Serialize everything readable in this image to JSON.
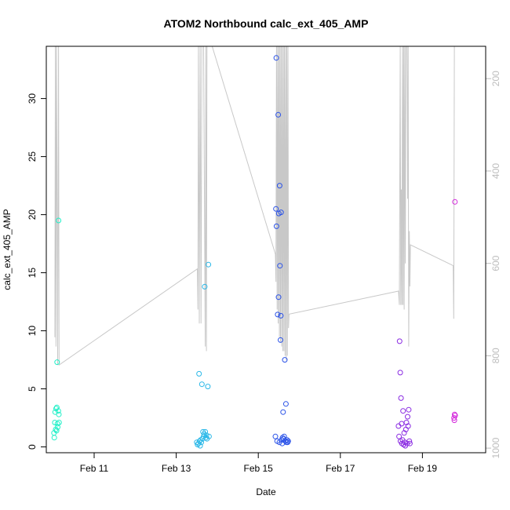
{
  "chart_data": {
    "type": "scatter",
    "title": "ATOM2 Northbound calc_ext_405_AMP",
    "xlabel": "Date",
    "ylabel": "calc_ext_405_AMP",
    "xlim": [
      "2025-02-09T20:00",
      "2025-02-20T13:00"
    ],
    "ylim": [
      -0.5,
      34.5
    ],
    "x_ticks": [
      {
        "value": "2025-02-11",
        "label": "Feb 11"
      },
      {
        "value": "2025-02-13",
        "label": "Feb 13"
      },
      {
        "value": "2025-02-15",
        "label": "Feb 15"
      },
      {
        "value": "2025-02-17",
        "label": "Feb 17"
      },
      {
        "value": "2025-02-19",
        "label": "Feb 19"
      }
    ],
    "y_ticks": [
      0,
      5,
      10,
      15,
      20,
      25,
      30
    ],
    "secondary_axis": {
      "side": "right",
      "reversed": true,
      "ylim": [
        1010,
        130
      ],
      "ticks": [
        200,
        400,
        600,
        800,
        1000
      ],
      "color": "#bdbdbd"
    },
    "grid": false,
    "legend": "none",
    "scatter_series": [
      {
        "color": "#22f0c8",
        "points": [
          {
            "x": "2025-02-10T00:30",
            "y": 1.2
          },
          {
            "x": "2025-02-10T00:40",
            "y": 0.8
          },
          {
            "x": "2025-02-10T01:00",
            "y": 2.1
          },
          {
            "x": "2025-02-10T01:10",
            "y": 3.0
          },
          {
            "x": "2025-02-10T01:30",
            "y": 1.5
          },
          {
            "x": "2025-02-10T01:45",
            "y": 3.3
          },
          {
            "x": "2025-02-10T02:00",
            "y": 1.4
          },
          {
            "x": "2025-02-10T02:10",
            "y": 3.4
          },
          {
            "x": "2025-02-10T02:20",
            "y": 7.3
          },
          {
            "x": "2025-02-10T02:30",
            "y": 2.0
          },
          {
            "x": "2025-02-10T02:40",
            "y": 1.7
          },
          {
            "x": "2025-02-10T03:00",
            "y": 3.1
          },
          {
            "x": "2025-02-10T03:10",
            "y": 19.5
          },
          {
            "x": "2025-02-10T03:20",
            "y": 2.8
          },
          {
            "x": "2025-02-10T03:30",
            "y": 2.1
          }
        ]
      },
      {
        "color": "#2ab8e8",
        "points": [
          {
            "x": "2025-02-13T12:00",
            "y": 0.4
          },
          {
            "x": "2025-02-13T12:30",
            "y": 0.2
          },
          {
            "x": "2025-02-13T13:00",
            "y": 0.3
          },
          {
            "x": "2025-02-13T13:20",
            "y": 6.3
          },
          {
            "x": "2025-02-13T13:40",
            "y": 0.5
          },
          {
            "x": "2025-02-13T14:00",
            "y": 0.1
          },
          {
            "x": "2025-02-13T14:20",
            "y": 0.6
          },
          {
            "x": "2025-02-13T14:40",
            "y": 0.4
          },
          {
            "x": "2025-02-13T15:00",
            "y": 5.4
          },
          {
            "x": "2025-02-13T15:20",
            "y": 0.7
          },
          {
            "x": "2025-02-13T15:40",
            "y": 1.3
          },
          {
            "x": "2025-02-13T16:00",
            "y": 0.9
          },
          {
            "x": "2025-02-13T16:20",
            "y": 1.1
          },
          {
            "x": "2025-02-13T16:40",
            "y": 13.8
          },
          {
            "x": "2025-02-13T17:00",
            "y": 1.3
          },
          {
            "x": "2025-02-13T17:20",
            "y": 0.8
          },
          {
            "x": "2025-02-13T17:40",
            "y": 1.0
          },
          {
            "x": "2025-02-13T18:00",
            "y": 0.7
          },
          {
            "x": "2025-02-13T18:30",
            "y": 5.2
          },
          {
            "x": "2025-02-13T18:50",
            "y": 15.7
          },
          {
            "x": "2025-02-13T19:10",
            "y": 0.9
          }
        ]
      },
      {
        "color": "#2a52e8",
        "points": [
          {
            "x": "2025-02-15T10:00",
            "y": 0.9
          },
          {
            "x": "2025-02-15T10:20",
            "y": 20.5
          },
          {
            "x": "2025-02-15T10:30",
            "y": 33.5
          },
          {
            "x": "2025-02-15T10:40",
            "y": 19.0
          },
          {
            "x": "2025-02-15T11:00",
            "y": 0.5
          },
          {
            "x": "2025-02-15T11:20",
            "y": 11.4
          },
          {
            "x": "2025-02-15T11:40",
            "y": 28.6
          },
          {
            "x": "2025-02-15T11:50",
            "y": 12.9
          },
          {
            "x": "2025-02-15T12:00",
            "y": 20.1
          },
          {
            "x": "2025-02-15T12:20",
            "y": 0.4
          },
          {
            "x": "2025-02-15T12:30",
            "y": 22.5
          },
          {
            "x": "2025-02-15T12:40",
            "y": 15.6
          },
          {
            "x": "2025-02-15T13:00",
            "y": 9.2
          },
          {
            "x": "2025-02-15T13:10",
            "y": 11.3
          },
          {
            "x": "2025-02-15T13:20",
            "y": 20.2
          },
          {
            "x": "2025-02-15T13:40",
            "y": 0.6
          },
          {
            "x": "2025-02-15T14:00",
            "y": 0.3
          },
          {
            "x": "2025-02-15T14:10",
            "y": 0.8
          },
          {
            "x": "2025-02-15T14:30",
            "y": 3.0
          },
          {
            "x": "2025-02-15T14:50",
            "y": 0.7
          },
          {
            "x": "2025-02-15T15:10",
            "y": 0.9
          },
          {
            "x": "2025-02-15T15:30",
            "y": 7.5
          },
          {
            "x": "2025-02-15T15:50",
            "y": 0.5
          },
          {
            "x": "2025-02-15T16:10",
            "y": 3.7
          },
          {
            "x": "2025-02-15T16:30",
            "y": 0.4
          },
          {
            "x": "2025-02-15T16:50",
            "y": 0.6
          },
          {
            "x": "2025-02-15T17:10",
            "y": 0.4
          },
          {
            "x": "2025-02-15T17:30",
            "y": 0.5
          }
        ]
      },
      {
        "color": "#8a2be2",
        "points": [
          {
            "x": "2025-02-18T10:00",
            "y": 1.8
          },
          {
            "x": "2025-02-18T10:20",
            "y": 0.9
          },
          {
            "x": "2025-02-18T10:40",
            "y": 9.1
          },
          {
            "x": "2025-02-18T11:00",
            "y": 6.4
          },
          {
            "x": "2025-02-18T11:10",
            "y": 0.5
          },
          {
            "x": "2025-02-18T11:30",
            "y": 4.2
          },
          {
            "x": "2025-02-18T11:50",
            "y": 2.0
          },
          {
            "x": "2025-02-18T12:00",
            "y": 0.3
          },
          {
            "x": "2025-02-18T12:20",
            "y": 0.6
          },
          {
            "x": "2025-02-18T12:40",
            "y": 3.1
          },
          {
            "x": "2025-02-18T13:00",
            "y": 0.2
          },
          {
            "x": "2025-02-18T13:20",
            "y": 1.2
          },
          {
            "x": "2025-02-18T13:40",
            "y": 0.4
          },
          {
            "x": "2025-02-18T14:00",
            "y": 0.1
          },
          {
            "x": "2025-02-18T14:20",
            "y": 1.5
          },
          {
            "x": "2025-02-18T14:40",
            "y": 2.1
          },
          {
            "x": "2025-02-18T15:00",
            "y": 0.3
          },
          {
            "x": "2025-02-18T15:20",
            "y": 2.6
          },
          {
            "x": "2025-02-18T15:40",
            "y": 1.8
          },
          {
            "x": "2025-02-18T16:00",
            "y": 3.2
          },
          {
            "x": "2025-02-18T16:20",
            "y": 0.5
          },
          {
            "x": "2025-02-18T16:40",
            "y": 0.3
          }
        ]
      },
      {
        "color": "#d42bdc",
        "points": [
          {
            "x": "2025-02-19T18:30",
            "y": 2.5
          },
          {
            "x": "2025-02-19T18:40",
            "y": 2.3
          },
          {
            "x": "2025-02-19T18:50",
            "y": 2.8
          },
          {
            "x": "2025-02-19T19:00",
            "y": 21.1
          },
          {
            "x": "2025-02-19T19:10",
            "y": 2.7
          }
        ]
      }
    ],
    "depth_line": {
      "color": "#c8c8c8",
      "axis": "secondary",
      "points": [
        {
          "x": "2025-02-10T01:00",
          "y": 760
        },
        {
          "x": "2025-02-10T01:20",
          "y": 130
        },
        {
          "x": "2025-02-10T01:40",
          "y": 780
        },
        {
          "x": "2025-02-10T02:00",
          "y": 130
        },
        {
          "x": "2025-02-10T02:40",
          "y": 820
        },
        {
          "x": "2025-02-10T03:10",
          "y": 130
        },
        {
          "x": "2025-02-10T03:30",
          "y": 820
        },
        {
          "x": "2025-02-13T12:20",
          "y": 612
        },
        {
          "x": "2025-02-13T12:40",
          "y": 700
        },
        {
          "x": "2025-02-13T13:00",
          "y": 130
        },
        {
          "x": "2025-02-13T13:30",
          "y": 730
        },
        {
          "x": "2025-02-13T14:00",
          "y": 130
        },
        {
          "x": "2025-02-13T14:30",
          "y": 730
        },
        {
          "x": "2025-02-13T15:00",
          "y": 130
        },
        {
          "x": "2025-02-13T16:00",
          "y": 130
        },
        {
          "x": "2025-02-13T17:00",
          "y": 780
        },
        {
          "x": "2025-02-13T17:20",
          "y": 130
        },
        {
          "x": "2025-02-13T17:40",
          "y": 790
        },
        {
          "x": "2025-02-13T18:00",
          "y": 130
        },
        {
          "x": "2025-02-13T19:00",
          "y": 130
        },
        {
          "x": "2025-02-13T21:00",
          "y": 130
        },
        {
          "x": "2025-02-15T10:00",
          "y": 580
        },
        {
          "x": "2025-02-15T10:20",
          "y": 640
        },
        {
          "x": "2025-02-15T10:40",
          "y": 130
        },
        {
          "x": "2025-02-15T11:00",
          "y": 700
        },
        {
          "x": "2025-02-15T11:20",
          "y": 130
        },
        {
          "x": "2025-02-15T11:40",
          "y": 730
        },
        {
          "x": "2025-02-15T12:00",
          "y": 130
        },
        {
          "x": "2025-02-15T12:20",
          "y": 760
        },
        {
          "x": "2025-02-15T12:40",
          "y": 130
        },
        {
          "x": "2025-02-15T13:00",
          "y": 770
        },
        {
          "x": "2025-02-15T13:20",
          "y": 130
        },
        {
          "x": "2025-02-15T13:40",
          "y": 780
        },
        {
          "x": "2025-02-15T14:00",
          "y": 130
        },
        {
          "x": "2025-02-15T14:20",
          "y": 790
        },
        {
          "x": "2025-02-15T14:40",
          "y": 130
        },
        {
          "x": "2025-02-15T15:00",
          "y": 790
        },
        {
          "x": "2025-02-15T15:20",
          "y": 130
        },
        {
          "x": "2025-02-15T15:40",
          "y": 800
        },
        {
          "x": "2025-02-15T16:00",
          "y": 130
        },
        {
          "x": "2025-02-15T16:20",
          "y": 810
        },
        {
          "x": "2025-02-15T16:40",
          "y": 130
        },
        {
          "x": "2025-02-15T17:00",
          "y": 800
        },
        {
          "x": "2025-02-15T17:20",
          "y": 130
        },
        {
          "x": "2025-02-15T17:40",
          "y": 740
        },
        {
          "x": "2025-02-15T18:00",
          "y": 710
        },
        {
          "x": "2025-02-18T10:00",
          "y": 660
        },
        {
          "x": "2025-02-18T10:30",
          "y": 690
        },
        {
          "x": "2025-02-18T11:00",
          "y": 130
        },
        {
          "x": "2025-02-18T11:20",
          "y": 690
        },
        {
          "x": "2025-02-18T11:40",
          "y": 440
        },
        {
          "x": "2025-02-18T12:00",
          "y": 690
        },
        {
          "x": "2025-02-18T12:20",
          "y": 130
        },
        {
          "x": "2025-02-18T12:40",
          "y": 690
        },
        {
          "x": "2025-02-18T13:00",
          "y": 130
        },
        {
          "x": "2025-02-18T13:20",
          "y": 700
        },
        {
          "x": "2025-02-18T13:40",
          "y": 130
        },
        {
          "x": "2025-02-18T14:00",
          "y": 600
        },
        {
          "x": "2025-02-18T14:20",
          "y": 130
        },
        {
          "x": "2025-02-18T15:00",
          "y": 130
        },
        {
          "x": "2025-02-18T15:20",
          "y": 460
        },
        {
          "x": "2025-02-18T15:40",
          "y": 130
        },
        {
          "x": "2025-02-18T16:00",
          "y": 780
        },
        {
          "x": "2025-02-18T16:20",
          "y": 530
        },
        {
          "x": "2025-02-18T16:40",
          "y": 650
        },
        {
          "x": "2025-02-18T17:00",
          "y": 560
        },
        {
          "x": "2025-02-19T18:00",
          "y": 605
        },
        {
          "x": "2025-02-19T18:20",
          "y": 720
        },
        {
          "x": "2025-02-19T18:40",
          "y": 130
        }
      ]
    }
  }
}
